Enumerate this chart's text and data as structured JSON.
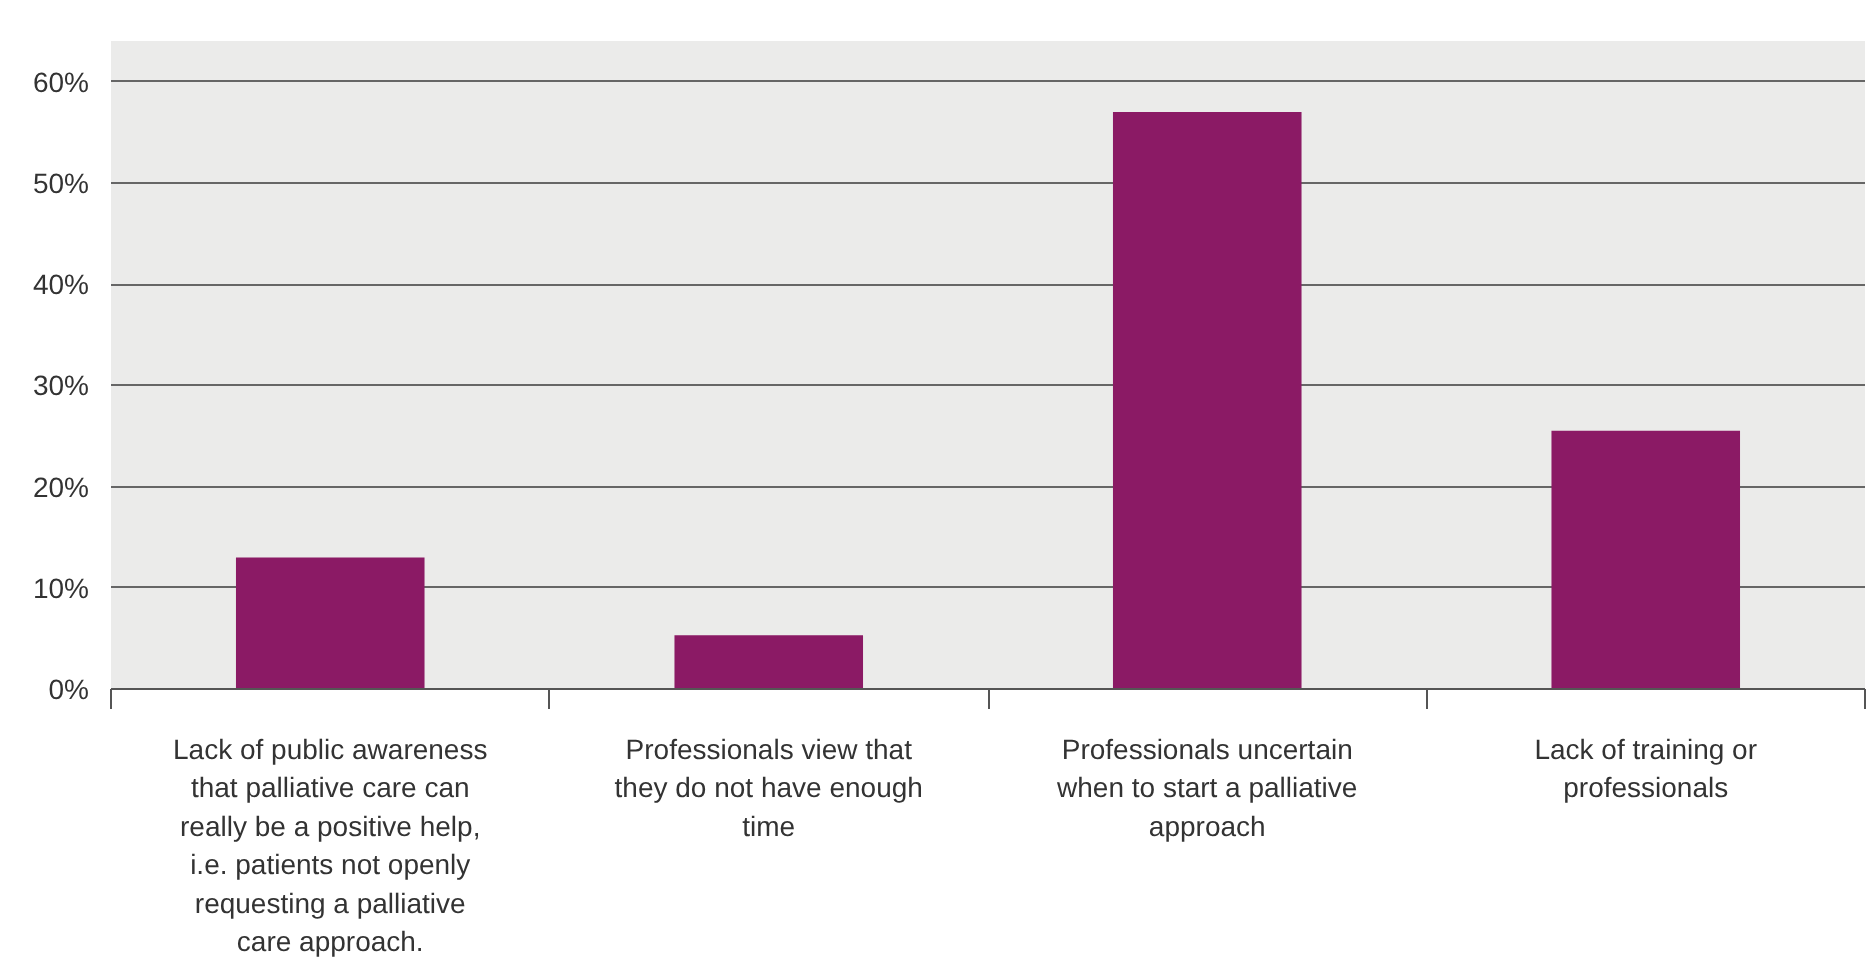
{
  "chart_data": {
    "type": "bar",
    "categories": [
      "Lack of public awareness that palliative care can really be a positive help, i.e. patients not openly requesting a palliative care approach.",
      "Professionals view that they do not have enough time",
      "Professionals uncertain when to start a palliative approach",
      "Lack of training or professionals"
    ],
    "values": [
      13,
      5.3,
      57,
      25.5
    ],
    "color": "#8b1a65",
    "ylim": [
      0,
      64
    ],
    "yticks": [
      {
        "value": 0,
        "label": "0%"
      },
      {
        "value": 10,
        "label": "10%"
      },
      {
        "value": 20,
        "label": "20%"
      },
      {
        "value": 30,
        "label": "30%"
      },
      {
        "value": 40,
        "label": "40%"
      },
      {
        "value": 50,
        "label": "50%"
      },
      {
        "value": 60,
        "label": "60%"
      }
    ],
    "grid": "y"
  }
}
